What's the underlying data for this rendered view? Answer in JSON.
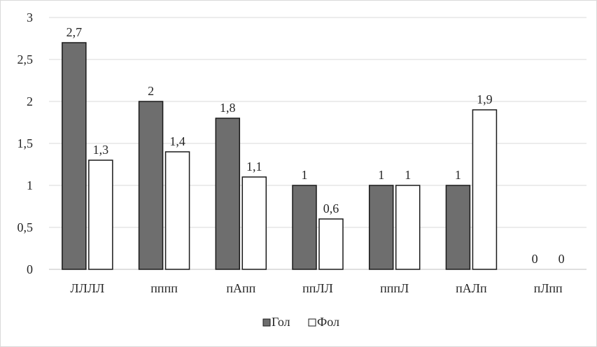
{
  "chart_data": {
    "type": "bar",
    "categories": [
      "ЛЛЛЛ",
      "пппп",
      "пАпп",
      "ппЛЛ",
      "пппЛ",
      "пАЛп",
      "пЛпп"
    ],
    "series": [
      {
        "name": "Гол",
        "values": [
          2.7,
          2,
          1.8,
          1,
          1,
          1,
          0
        ],
        "labels": [
          "2,7",
          "2",
          "1,8",
          "1",
          "1",
          "1",
          "0"
        ],
        "color": "#6e6e6e"
      },
      {
        "name": "Фол",
        "values": [
          1.3,
          1.4,
          1.1,
          0.6,
          1,
          1.9,
          0
        ],
        "labels": [
          "1,3",
          "1,4",
          "1,1",
          "0,6",
          "1",
          "1,9",
          "0"
        ],
        "color": "#ffffff"
      }
    ],
    "ylim": [
      0,
      3
    ],
    "yticks": [
      {
        "value": 0,
        "label": "0"
      },
      {
        "value": 0.5,
        "label": "0,5"
      },
      {
        "value": 1,
        "label": "1"
      },
      {
        "value": 1.5,
        "label": "1,5"
      },
      {
        "value": 2,
        "label": "2"
      },
      {
        "value": 2.5,
        "label": "2,5"
      },
      {
        "value": 3,
        "label": "3"
      }
    ],
    "grid": true,
    "legend_position": "bottom"
  }
}
